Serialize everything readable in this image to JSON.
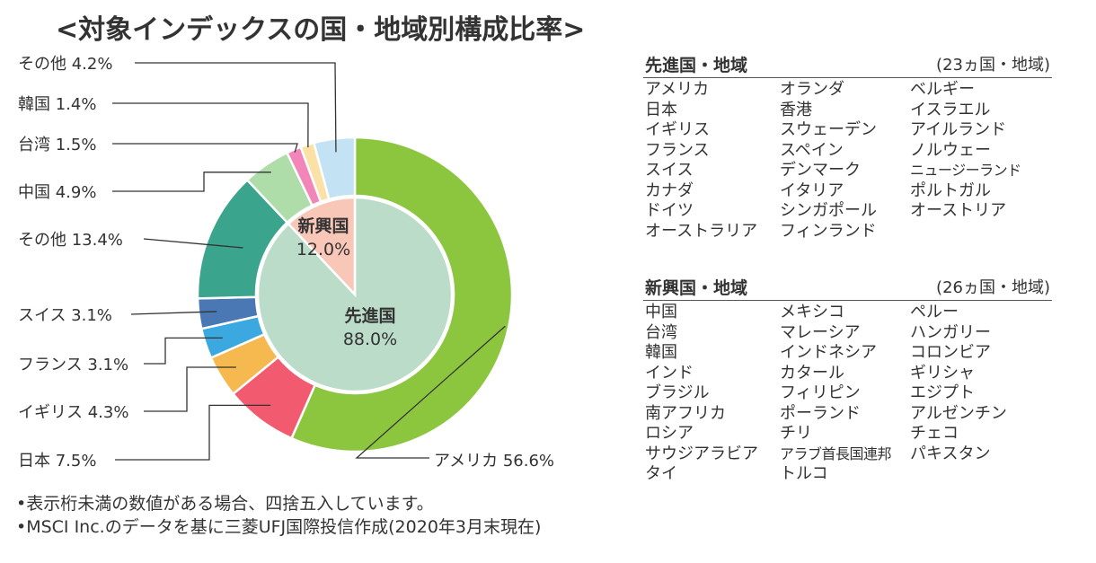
{
  "title": "<対象インデックスの国・地域別構成比率>",
  "chart_data": {
    "type": "pie",
    "variant": "nested-donut",
    "outer": [
      {
        "label": "アメリカ",
        "value": 56.6,
        "display": "アメリカ 56.6%",
        "color": "#8CC63F"
      },
      {
        "label": "日本",
        "value": 7.5,
        "display": "日本 7.5%",
        "color": "#F25A6F"
      },
      {
        "label": "イギリス",
        "value": 4.3,
        "display": "イギリス 4.3%",
        "color": "#F6B94F"
      },
      {
        "label": "フランス",
        "value": 3.1,
        "display": "フランス 3.1%",
        "color": "#3BA9E0"
      },
      {
        "label": "スイス",
        "value": 3.1,
        "display": "スイス 3.1%",
        "color": "#4A78B5"
      },
      {
        "label": "その他",
        "value": 13.4,
        "display": "その他 13.4%",
        "color": "#3AA48C"
      },
      {
        "label": "中国",
        "value": 4.9,
        "display": "中国 4.9%",
        "color": "#AEDDAA"
      },
      {
        "label": "台湾",
        "value": 1.5,
        "display": "台湾 1.5%",
        "color": "#F286B8"
      },
      {
        "label": "韓国",
        "value": 1.4,
        "display": "韓国 1.4%",
        "color": "#FCE1A6"
      },
      {
        "label": "その他",
        "value": 4.2,
        "display": "その他 4.2%",
        "color": "#C3E2F4"
      }
    ],
    "inner": [
      {
        "label": "先進国",
        "value": 88.0,
        "display": "88.0%",
        "color": "#BBDCC9"
      },
      {
        "label": "新興国",
        "value": 12.0,
        "display": "12.0%",
        "color": "#F9C7B8"
      }
    ]
  },
  "developed": {
    "title": "先進国・地域",
    "count": "(23ヵ国・地域)",
    "columns": [
      [
        "アメリカ",
        "日本",
        "イギリス",
        "フランス",
        "スイス",
        "カナダ",
        "ドイツ",
        "オーストラリア"
      ],
      [
        "オランダ",
        "香港",
        "スウェーデン",
        "スペイン",
        "デンマーク",
        "イタリア",
        "シンガポール",
        "フィンランド"
      ],
      [
        "ベルギー",
        "イスラエル",
        "アイルランド",
        "ノルウェー",
        "ニュージーランド",
        "ポルトガル",
        "オーストリア"
      ]
    ]
  },
  "emerging": {
    "title": "新興国・地域",
    "count": "(26ヵ国・地域)",
    "columns": [
      [
        "中国",
        "台湾",
        "韓国",
        "インド",
        "ブラジル",
        "南アフリカ",
        "ロシア",
        "サウジアラビア",
        "タイ"
      ],
      [
        "メキシコ",
        "マレーシア",
        "インドネシア",
        "カタール",
        "フィリピン",
        "ポーランド",
        "チリ",
        "アラブ首長国連邦",
        "トルコ"
      ],
      [
        "ペルー",
        "ハンガリー",
        "コロンビア",
        "ギリシャ",
        "エジプト",
        "アルゼンチン",
        "チェコ",
        "パキスタン"
      ]
    ]
  },
  "notes": [
    "•表示桁未満の数値がある場合、四捨五入しています。",
    "•MSCI Inc.のデータを基に三菱UFJ国際投信作成(2020年3月末現在)"
  ]
}
